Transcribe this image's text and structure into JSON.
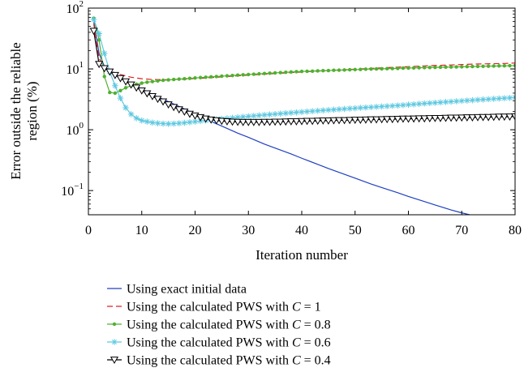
{
  "chart_data": {
    "type": "line",
    "xlabel": "Iteration number",
    "ylabel_lines": [
      "Error outside the reliable",
      "region (%)"
    ],
    "yscale": "log",
    "xlim": [
      0,
      80
    ],
    "ylim": [
      0.04,
      100
    ],
    "x_ticks": [
      0,
      10,
      20,
      30,
      40,
      50,
      60,
      70,
      80
    ],
    "y_ticks": [
      {
        "value": 0.1,
        "base": "10",
        "exp": "−1"
      },
      {
        "value": 1,
        "base": "10",
        "exp": "0"
      },
      {
        "value": 10,
        "base": "10",
        "exp": "1"
      },
      {
        "value": 100,
        "base": "10",
        "exp": "2"
      }
    ],
    "grid": false,
    "legend_position": "below",
    "series": [
      {
        "name": "Using exact initial data",
        "legend_prefix": "Using exact initial data",
        "legend_var": "",
        "legend_suffix": "",
        "color": "#2040c0",
        "dash": "",
        "marker": "none",
        "x": [
          1,
          2,
          3,
          4,
          5,
          6,
          8,
          10,
          12,
          15,
          18,
          20,
          22,
          25,
          28,
          30,
          33,
          35,
          38,
          40,
          43,
          45,
          48,
          50,
          53,
          55,
          58,
          60,
          63,
          65,
          68,
          70,
          72,
          74,
          76,
          78,
          80
        ],
        "y": [
          60,
          18,
          11,
          9.5,
          8.2,
          7.3,
          5.8,
          4.7,
          3.8,
          2.9,
          2.2,
          1.8,
          1.5,
          1.15,
          0.88,
          0.75,
          0.58,
          0.5,
          0.4,
          0.34,
          0.27,
          0.23,
          0.185,
          0.16,
          0.128,
          0.112,
          0.092,
          0.08,
          0.066,
          0.058,
          0.048,
          0.043,
          0.039,
          0.036,
          0.034,
          0.032,
          0.03
        ]
      },
      {
        "name": "Using the calculated PWS with C = 1",
        "legend_prefix": "Using the calculated PWS with ",
        "legend_var": "C",
        "legend_suffix": " = 1",
        "color": "#e02020",
        "dash": "7,4",
        "marker": "none",
        "x": [
          1,
          2,
          3,
          4,
          5,
          6,
          8,
          10,
          12,
          14,
          16,
          18,
          20,
          22,
          25,
          28,
          30,
          33,
          35,
          38,
          40,
          43,
          45,
          48,
          50,
          53,
          55,
          58,
          60,
          63,
          65,
          68,
          70,
          72,
          74,
          76,
          78,
          80
        ],
        "y": [
          55,
          15,
          10.5,
          9.3,
          8.6,
          8.1,
          7.3,
          6.9,
          6.7,
          6.65,
          6.7,
          6.8,
          6.95,
          7.1,
          7.4,
          7.7,
          7.9,
          8.2,
          8.4,
          8.7,
          8.9,
          9.2,
          9.4,
          9.7,
          9.9,
          10.2,
          10.4,
          10.7,
          10.9,
          11.2,
          11.4,
          11.6,
          11.8,
          12.0,
          12.1,
          12.2,
          12.3,
          12.5
        ]
      },
      {
        "name": "Using the calculated PWS with C = 0.8",
        "legend_prefix": "Using the calculated PWS with ",
        "legend_var": "C",
        "legend_suffix": " = 0.8",
        "color": "#50b030",
        "dash": "",
        "marker": "dot",
        "x": [
          1,
          2,
          3,
          4,
          5,
          6,
          7,
          8,
          9,
          10,
          11,
          12,
          13,
          14,
          15,
          16,
          17,
          18,
          19,
          20,
          21,
          22,
          23,
          24,
          25,
          26,
          27,
          28,
          29,
          30,
          31,
          32,
          33,
          34,
          35,
          36,
          37,
          38,
          39,
          40,
          41,
          42,
          43,
          44,
          45,
          46,
          47,
          48,
          49,
          50,
          51,
          52,
          53,
          54,
          55,
          56,
          57,
          58,
          59,
          60,
          61,
          62,
          63,
          64,
          65,
          66,
          67,
          68,
          69,
          70,
          71,
          72,
          73,
          74,
          75,
          76,
          77,
          78,
          79,
          80
        ],
        "y": [
          68,
          30,
          7.5,
          4.1,
          4.0,
          4.4,
          4.9,
          5.3,
          5.6,
          5.85,
          6.05,
          6.2,
          6.35,
          6.5,
          6.6,
          6.7,
          6.8,
          6.9,
          7.0,
          7.1,
          7.2,
          7.3,
          7.4,
          7.5,
          7.6,
          7.7,
          7.8,
          7.9,
          8.0,
          8.1,
          8.2,
          8.3,
          8.4,
          8.5,
          8.6,
          8.7,
          8.8,
          8.9,
          9.0,
          9.1,
          9.15,
          9.2,
          9.3,
          9.35,
          9.4,
          9.5,
          9.55,
          9.6,
          9.7,
          9.75,
          9.8,
          9.9,
          9.95,
          10.0,
          10.05,
          10.1,
          10.15,
          10.2,
          10.3,
          10.35,
          10.4,
          10.45,
          10.5,
          10.55,
          10.6,
          10.65,
          10.7,
          10.75,
          10.8,
          10.85,
          10.9,
          10.95,
          11.0,
          11.05,
          11.1,
          11.15,
          11.2,
          11.25,
          11.3,
          11.35
        ]
      },
      {
        "name": "Using the calculated PWS with C = 0.6",
        "legend_prefix": "Using the calculated PWS with ",
        "legend_var": "C",
        "legend_suffix": " = 0.6",
        "color": "#5ec8e0",
        "dash": "",
        "marker": "star",
        "x": [
          1,
          2,
          3,
          4,
          5,
          6,
          7,
          8,
          9,
          10,
          11,
          12,
          13,
          14,
          15,
          16,
          17,
          18,
          19,
          20,
          21,
          22,
          23,
          24,
          25,
          26,
          27,
          28,
          29,
          30,
          31,
          32,
          33,
          34,
          35,
          36,
          37,
          38,
          39,
          40,
          41,
          42,
          43,
          44,
          45,
          46,
          47,
          48,
          49,
          50,
          51,
          52,
          53,
          54,
          55,
          56,
          57,
          58,
          59,
          60,
          61,
          62,
          63,
          64,
          65,
          66,
          67,
          68,
          69,
          70,
          71,
          72,
          73,
          74,
          75,
          76,
          77,
          78,
          79,
          80
        ],
        "y": [
          65,
          38,
          18,
          9.0,
          5.3,
          3.3,
          2.3,
          1.8,
          1.55,
          1.42,
          1.36,
          1.31,
          1.28,
          1.26,
          1.25,
          1.26,
          1.28,
          1.3,
          1.33,
          1.36,
          1.39,
          1.42,
          1.45,
          1.48,
          1.51,
          1.54,
          1.57,
          1.6,
          1.63,
          1.66,
          1.69,
          1.72,
          1.75,
          1.78,
          1.81,
          1.84,
          1.87,
          1.9,
          1.93,
          1.96,
          1.99,
          2.02,
          2.05,
          2.08,
          2.11,
          2.14,
          2.17,
          2.2,
          2.23,
          2.26,
          2.29,
          2.32,
          2.35,
          2.38,
          2.41,
          2.44,
          2.47,
          2.5,
          2.54,
          2.58,
          2.62,
          2.66,
          2.7,
          2.74,
          2.78,
          2.82,
          2.86,
          2.9,
          2.94,
          2.98,
          3.02,
          3.06,
          3.1,
          3.14,
          3.18,
          3.22,
          3.26,
          3.3,
          3.34,
          3.4
        ]
      },
      {
        "name": "Using the calculated PWS with C = 0.4",
        "legend_prefix": "Using the calculated PWS with ",
        "legend_var": "C",
        "legend_suffix": " = 0.4",
        "color": "#000000",
        "dash": "",
        "marker": "triangle-down",
        "x": [
          1,
          2,
          3,
          4,
          5,
          6,
          7,
          8,
          9,
          10,
          11,
          12,
          13,
          14,
          15,
          16,
          17,
          18,
          19,
          20,
          21,
          22,
          23,
          24,
          25,
          26,
          27,
          28,
          29,
          30,
          31,
          32,
          33,
          34,
          35,
          36,
          37,
          38,
          39,
          40,
          41,
          42,
          43,
          44,
          45,
          46,
          47,
          48,
          49,
          50,
          51,
          52,
          53,
          54,
          55,
          56,
          57,
          58,
          59,
          60,
          61,
          62,
          63,
          64,
          65,
          66,
          67,
          68,
          69,
          70,
          71,
          72,
          73,
          74,
          75,
          76,
          77,
          78,
          79,
          80
        ],
        "y": [
          42,
          12,
          10.2,
          9.0,
          7.9,
          7.0,
          6.2,
          5.5,
          4.9,
          4.4,
          3.95,
          3.55,
          3.2,
          2.9,
          2.6,
          2.35,
          2.15,
          1.98,
          1.82,
          1.7,
          1.6,
          1.52,
          1.46,
          1.42,
          1.39,
          1.37,
          1.35,
          1.34,
          1.33,
          1.33,
          1.33,
          1.33,
          1.34,
          1.34,
          1.35,
          1.35,
          1.36,
          1.37,
          1.37,
          1.38,
          1.39,
          1.39,
          1.4,
          1.41,
          1.41,
          1.42,
          1.43,
          1.43,
          1.44,
          1.45,
          1.45,
          1.46,
          1.47,
          1.47,
          1.48,
          1.49,
          1.49,
          1.5,
          1.51,
          1.51,
          1.52,
          1.53,
          1.53,
          1.54,
          1.55,
          1.55,
          1.56,
          1.57,
          1.57,
          1.58,
          1.59,
          1.59,
          1.6,
          1.61,
          1.61,
          1.62,
          1.63,
          1.63,
          1.64,
          1.65
        ]
      }
    ]
  }
}
